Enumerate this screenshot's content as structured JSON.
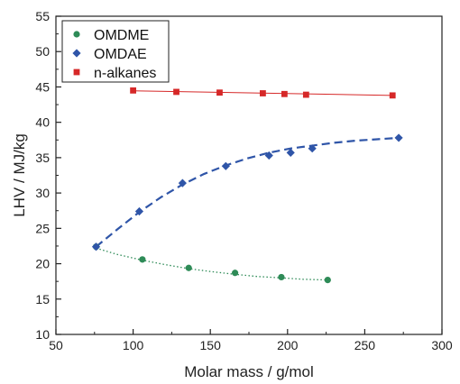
{
  "chart_data": {
    "type": "scatter",
    "xlabel": "Molar mass / g/mol",
    "ylabel": "LHV / MJ/kg",
    "xlim": [
      50,
      300
    ],
    "ylim": [
      10,
      55
    ],
    "x_ticks": [
      50,
      100,
      150,
      200,
      250,
      300
    ],
    "y_ticks": [
      10,
      15,
      20,
      25,
      30,
      35,
      40,
      45,
      50,
      55
    ],
    "grid": false,
    "legend_position": "top-left",
    "series": [
      {
        "name": "OMDME",
        "marker": "circle",
        "color": "#2e8b57",
        "fit_style": "dotted",
        "x": [
          76,
          106,
          136,
          166,
          196,
          226
        ],
        "y": [
          22.4,
          20.6,
          19.4,
          18.7,
          18.1,
          17.7
        ],
        "fit_x": [
          76,
          90,
          106,
          120,
          136,
          150,
          166,
          180,
          196,
          210,
          226
        ],
        "fit_y": [
          22.2,
          21.3,
          20.5,
          19.9,
          19.3,
          18.9,
          18.5,
          18.2,
          18.0,
          17.8,
          17.7
        ]
      },
      {
        "name": "OMDAE",
        "marker": "diamond",
        "color": "#2f55a8",
        "fit_style": "dashed",
        "x": [
          76,
          104,
          132,
          160,
          188,
          202,
          216,
          272
        ],
        "y": [
          22.4,
          27.4,
          31.4,
          33.8,
          35.3,
          35.7,
          36.3,
          37.8
        ],
        "fit_x": [
          76,
          90,
          104,
          118,
          132,
          146,
          160,
          174,
          188,
          202,
          216,
          230,
          244,
          258,
          272
        ],
        "fit_y": [
          22.4,
          24.9,
          27.3,
          29.4,
          31.2,
          32.7,
          33.9,
          34.9,
          35.7,
          36.3,
          36.7,
          37.1,
          37.4,
          37.6,
          37.8
        ]
      },
      {
        "name": "n-alkanes",
        "marker": "square",
        "color": "#d62828",
        "fit_style": "solid",
        "x": [
          100,
          128,
          156,
          184,
          198,
          212,
          268
        ],
        "y": [
          44.5,
          44.3,
          44.2,
          44.1,
          44.0,
          43.9,
          43.8
        ],
        "fit_x": [
          100,
          268
        ],
        "fit_y": [
          44.45,
          43.8
        ]
      }
    ]
  }
}
